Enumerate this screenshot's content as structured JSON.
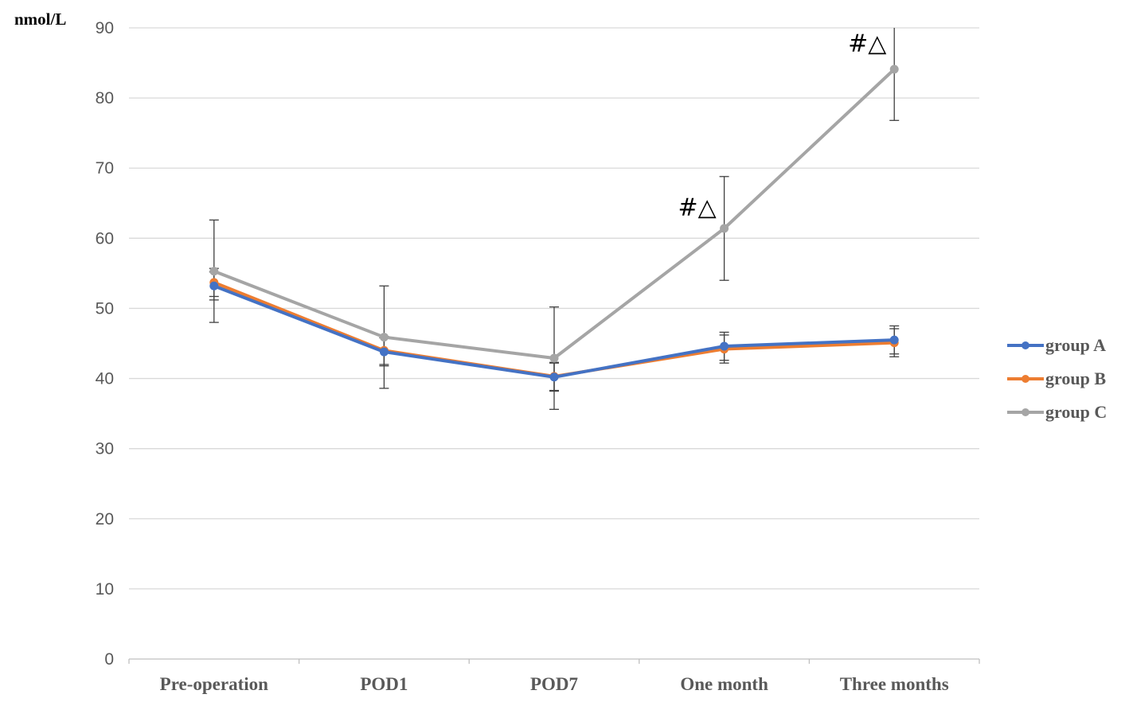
{
  "chart_data": {
    "type": "line",
    "title": "",
    "ylabel": "nmol/L",
    "xlabel": "",
    "ylim": [
      0,
      90
    ],
    "yticks": [
      0,
      10,
      20,
      30,
      40,
      50,
      60,
      70,
      80,
      90
    ],
    "categories": [
      "Pre-operation",
      "POD1",
      "POD7",
      "One month",
      "Three months"
    ],
    "grid": true,
    "legend_position": "right",
    "series": [
      {
        "name": "group A",
        "color": "#4472c4",
        "values": [
          53.2,
          43.8,
          40.2,
          44.6,
          45.5
        ],
        "errors": [
          2.0,
          2.0,
          2.0,
          2.0,
          2.0
        ]
      },
      {
        "name": "group B",
        "color": "#ed7d31",
        "values": [
          53.7,
          44.0,
          40.3,
          44.2,
          45.1
        ],
        "errors": [
          2.0,
          2.0,
          2.0,
          2.0,
          2.0
        ]
      },
      {
        "name": "group C",
        "color": "#a5a5a5",
        "values": [
          55.3,
          45.9,
          42.9,
          61.4,
          84.1
        ],
        "errors": [
          7.3,
          7.3,
          7.3,
          7.4,
          7.3
        ]
      }
    ],
    "annotations": [
      {
        "text": "#△",
        "category": "One month",
        "y": 64.5
      },
      {
        "text": "#△",
        "category": "Three months",
        "y": 87.9
      }
    ]
  }
}
